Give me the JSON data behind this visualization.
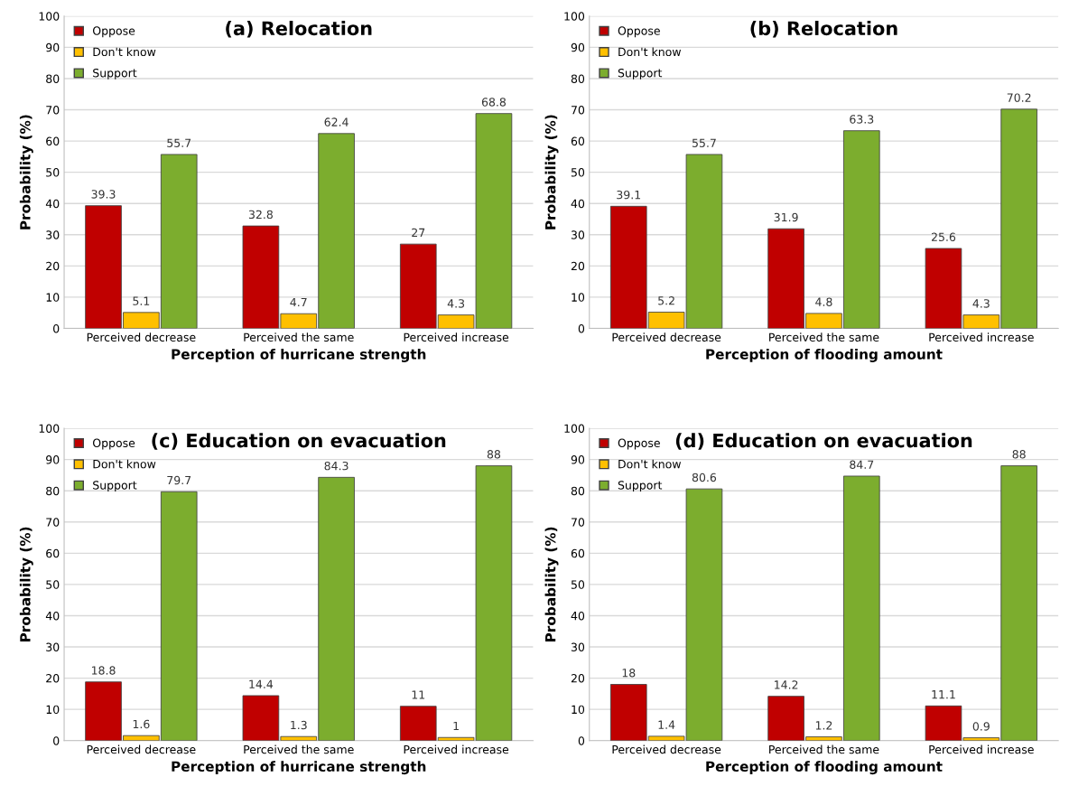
{
  "chart_data": [
    {
      "type": "bar",
      "title": "(a) Relocation",
      "xlabel": "Perception of hurricane strength",
      "ylabel": "Probability (%)",
      "categories": [
        "Perceived decrease",
        "Perceived the same",
        "Perceived increase"
      ],
      "series": [
        {
          "name": "Oppose",
          "color": "#c00000",
          "values": [
            39.3,
            32.8,
            27
          ]
        },
        {
          "name": "Don't know",
          "color": "#ffc000",
          "values": [
            5.1,
            4.7,
            4.3
          ]
        },
        {
          "name": "Support",
          "color": "#7cad2e",
          "values": [
            55.7,
            62.4,
            68.8
          ]
        }
      ],
      "ylim": [
        0,
        100
      ],
      "yticks": [
        0,
        10,
        20,
        30,
        40,
        50,
        60,
        70,
        80,
        90,
        100
      ],
      "grid": "y",
      "legend": "top left",
      "data_labels": true
    },
    {
      "type": "bar",
      "title": "(b) Relocation",
      "xlabel": "Perception of flooding amount",
      "ylabel": "Probability (%)",
      "categories": [
        "Perceived decrease",
        "Perceived the same",
        "Perceived increase"
      ],
      "series": [
        {
          "name": "Oppose",
          "color": "#c00000",
          "values": [
            39.1,
            31.9,
            25.6
          ]
        },
        {
          "name": "Don't know",
          "color": "#ffc000",
          "values": [
            5.2,
            4.8,
            4.3
          ]
        },
        {
          "name": "Support",
          "color": "#7cad2e",
          "values": [
            55.7,
            63.3,
            70.2
          ]
        }
      ],
      "ylim": [
        0,
        100
      ],
      "yticks": [
        0,
        10,
        20,
        30,
        40,
        50,
        60,
        70,
        80,
        90,
        100
      ],
      "grid": "y",
      "legend": "top left",
      "data_labels": true
    },
    {
      "type": "bar",
      "title": "(c) Education on evacuation",
      "xlabel": "Perception of hurricane strength",
      "ylabel": "Probability (%)",
      "categories": [
        "Perceived decrease",
        "Perceived the same",
        "Perceived increase"
      ],
      "series": [
        {
          "name": "Oppose",
          "color": "#c00000",
          "values": [
            18.8,
            14.4,
            11
          ]
        },
        {
          "name": "Don't know",
          "color": "#ffc000",
          "values": [
            1.6,
            1.3,
            1
          ]
        },
        {
          "name": "Support",
          "color": "#7cad2e",
          "values": [
            79.7,
            84.3,
            88
          ]
        }
      ],
      "ylim": [
        0,
        100
      ],
      "yticks": [
        0,
        10,
        20,
        30,
        40,
        50,
        60,
        70,
        80,
        90,
        100
      ],
      "grid": "y",
      "legend": "top left",
      "data_labels": true
    },
    {
      "type": "bar",
      "title": "(d) Education on evacuation",
      "xlabel": "Perception of flooding amount",
      "ylabel": "Probability (%)",
      "categories": [
        "Perceived decrease",
        "Perceived the same",
        "Perceived increase"
      ],
      "series": [
        {
          "name": "Oppose",
          "color": "#c00000",
          "values": [
            18,
            14.2,
            11.1
          ]
        },
        {
          "name": "Don't know",
          "color": "#ffc000",
          "values": [
            1.4,
            1.2,
            0.9
          ]
        },
        {
          "name": "Support",
          "color": "#7cad2e",
          "values": [
            80.6,
            84.7,
            88
          ]
        }
      ],
      "ylim": [
        0,
        100
      ],
      "yticks": [
        0,
        10,
        20,
        30,
        40,
        50,
        60,
        70,
        80,
        90,
        100
      ],
      "grid": "y",
      "legend": "top left",
      "data_labels": true
    }
  ]
}
